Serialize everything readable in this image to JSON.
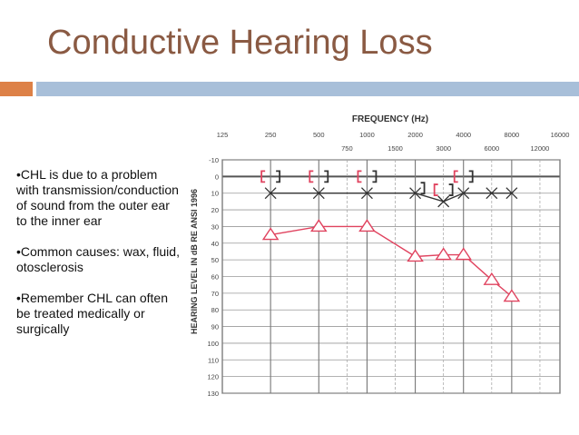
{
  "slide": {
    "title": "Conductive Hearing Loss",
    "accent_colors": {
      "orange_bar": "#dd8147",
      "blue_bar": "#a8bfd9",
      "title": "#8a5a43"
    },
    "bullets": [
      "•CHL is due to a problem with transmission/conduction of sound from the outer ear to the inner ear",
      "•Common causes: wax, fluid, otosclerosis",
      "•Remember CHL can often be treated medically or surgically"
    ]
  },
  "chart_data": {
    "type": "line",
    "title": "FREQUENCY (Hz)",
    "xlabel": "FREQUENCY (Hz)",
    "ylabel": "HEARING LEVEL IN dB RE ANSI 1996",
    "x_ticks_top": [
      "125",
      "250",
      "500",
      "1000",
      "2000",
      "4000",
      "8000",
      "16000"
    ],
    "x_ticks_mid": [
      "750",
      "1500",
      "3000",
      "6000",
      "12000"
    ],
    "y_ticks": [
      -10,
      0,
      10,
      20,
      30,
      40,
      50,
      60,
      70,
      80,
      90,
      100,
      110,
      120,
      130
    ],
    "ylim": [
      -10,
      130
    ],
    "y_inverted": true,
    "grid": true,
    "series": [
      {
        "marker": "triangle",
        "color": "#e0435f",
        "points": [
          {
            "x": "250",
            "y": 35
          },
          {
            "x": "500",
            "y": 30
          },
          {
            "x": "1000",
            "y": 30
          },
          {
            "x": "2000",
            "y": 48
          },
          {
            "x": "3000",
            "y": 47
          },
          {
            "x": "4000",
            "y": 47
          },
          {
            "x": "6000",
            "y": 62
          },
          {
            "x": "8000",
            "y": 72
          }
        ]
      },
      {
        "marker": "x",
        "color": "#333333",
        "points": [
          {
            "x": "250",
            "y": 10
          },
          {
            "x": "500",
            "y": 10
          },
          {
            "x": "1000",
            "y": 10
          },
          {
            "x": "2000",
            "y": 10
          },
          {
            "x": "3000",
            "y": 15
          },
          {
            "x": "4000",
            "y": 10
          },
          {
            "x": "6000",
            "y": 10
          },
          {
            "x": "8000",
            "y": 10
          }
        ]
      },
      {
        "marker": "bracket-left",
        "color": "#e0435f",
        "points": [
          {
            "x": "250",
            "y": 0
          },
          {
            "x": "500",
            "y": 0
          },
          {
            "x": "1000",
            "y": 0
          },
          {
            "x": "3000",
            "y": 8
          },
          {
            "x": "4000",
            "y": 0
          }
        ]
      },
      {
        "marker": "bracket-right",
        "color": "#333333",
        "points": [
          {
            "x": "250",
            "y": 0
          },
          {
            "x": "500",
            "y": 0
          },
          {
            "x": "1000",
            "y": 0
          },
          {
            "x": "2000",
            "y": 7
          },
          {
            "x": "3000",
            "y": 8
          },
          {
            "x": "4000",
            "y": 0
          }
        ]
      }
    ]
  }
}
